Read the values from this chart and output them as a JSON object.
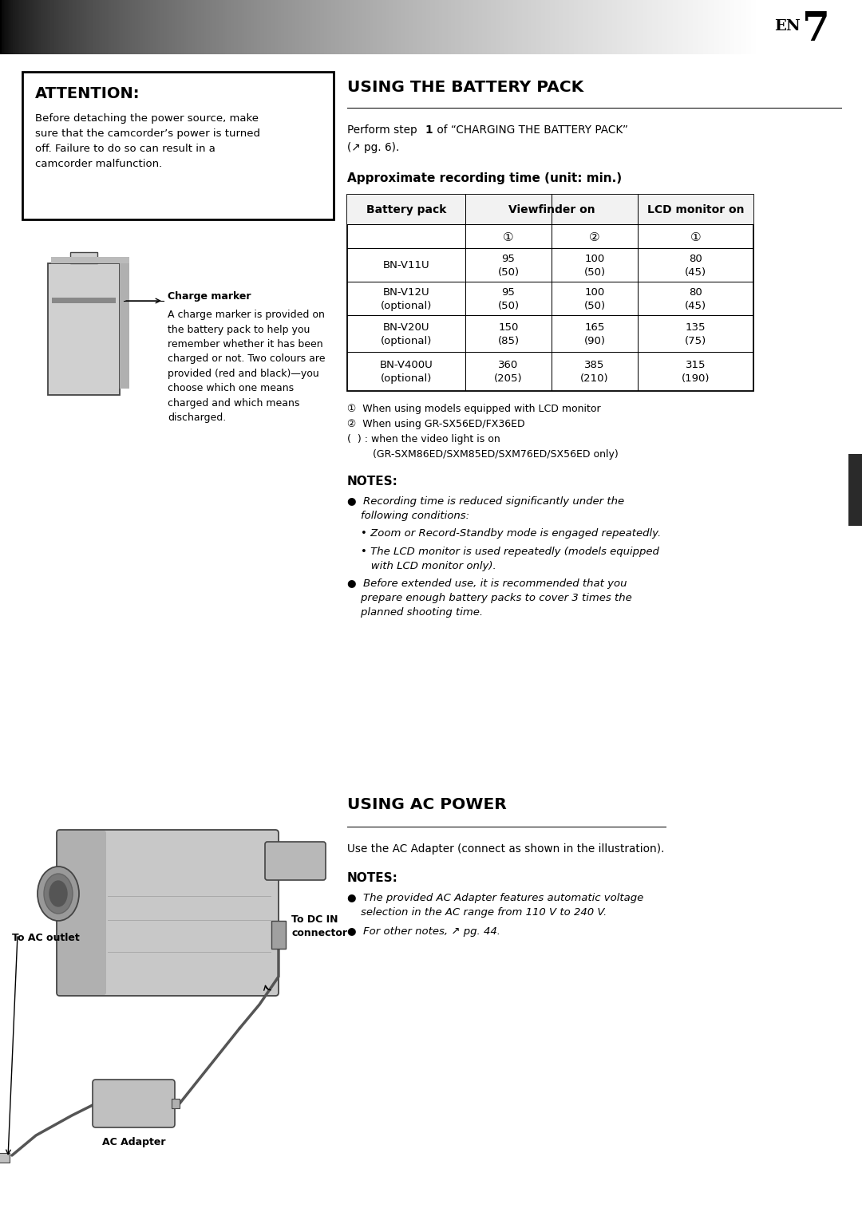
{
  "page_bg": "#ffffff",
  "dark_tab_color": "#2a2a2a",
  "attention": {
    "title": "ATTENTION:",
    "body": "Before detaching the power source, make\nsure that the camcorder’s power is turned\noff. Failure to do so can result in a\ncamcorder malfunction."
  },
  "charge_marker_label": "Charge marker",
  "charge_marker_text": "A charge marker is provided on\nthe battery pack to help you\nremember whether it has been\ncharged or not. Two colours are\nprovided (red and black)—you\nchoose which one means\ncharged and which means\ndischarged.",
  "battery": {
    "title": "USING THE BATTERY PACK",
    "sub1": "Perform step ",
    "sub1b": "1",
    "sub1c": " of “CHARGING THE BATTERY PACK”",
    "sub2": "(↗ pg. 6).",
    "tbl_title": "Approximate recording time (unit: min.)",
    "col_headers": [
      "Battery pack",
      "Viewfinder on",
      "LCD monitor on"
    ],
    "sub_headers": [
      "①",
      "②",
      "①"
    ],
    "rows": [
      [
        "BN-V11U",
        "95\n(50)",
        "100\n(50)",
        "80\n(45)"
      ],
      [
        "BN-V12U\n(optional)",
        "95\n(50)",
        "100\n(50)",
        "80\n(45)"
      ],
      [
        "BN-V20U\n(optional)",
        "150\n(85)",
        "165\n(90)",
        "135\n(75)"
      ],
      [
        "BN-V400U\n(optional)",
        "360\n(205)",
        "385\n(210)",
        "315\n(190)"
      ]
    ],
    "footnotes": [
      "①  When using models equipped with LCD monitor",
      "②  When using GR-SX56ED/FX36ED",
      "(  ) : when the video light is on",
      "        (GR-SXM86ED/SXM85ED/SXM76ED/SX56ED only)"
    ],
    "notes_title": "NOTES:",
    "notes": [
      "●  Recording time is reduced significantly under the\n    following conditions:",
      "    • Zoom or Record-Standby mode is engaged repeatedly.",
      "    • The LCD monitor is used repeatedly (models equipped\n       with LCD monitor only).",
      "●  Before extended use, it is recommended that you\n    prepare enough battery packs to cover 3 times the\n    planned shooting time."
    ]
  },
  "ac": {
    "title": "USING AC POWER",
    "subtitle": "Use the AC Adapter (connect as shown in the illustration).",
    "notes_title": "NOTES:",
    "notes": [
      "●  The provided AC Adapter features automatic voltage\n    selection in the AC range from 110 V to 240 V.",
      "●  For other notes, ↗ pg. 44."
    ]
  },
  "labels": {
    "to_ac_outlet": "To AC outlet",
    "to_dc_in": "To DC IN\nconnector",
    "ac_adapter": "AC Adapter"
  }
}
